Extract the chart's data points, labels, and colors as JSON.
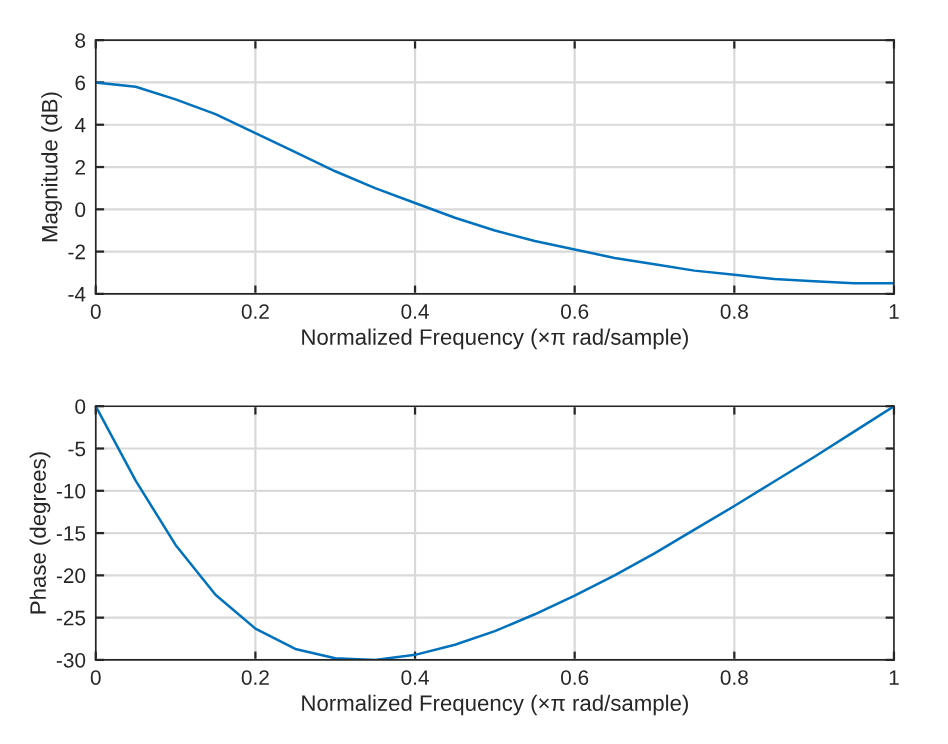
{
  "chart_data": [
    {
      "type": "line",
      "xlabel": "Normalized Frequency (×π rad/sample)",
      "ylabel": "Magnitude (dB)",
      "x": [
        0,
        0.05,
        0.1,
        0.15,
        0.2,
        0.25,
        0.3,
        0.35,
        0.4,
        0.45,
        0.5,
        0.55,
        0.6,
        0.65,
        0.7,
        0.75,
        0.8,
        0.85,
        0.9,
        0.95,
        1
      ],
      "series": [
        {
          "color": "#0072bd",
          "values": [
            6.0,
            5.8,
            5.2,
            4.5,
            3.6,
            2.7,
            1.8,
            1.0,
            0.3,
            -0.4,
            -1.0,
            -1.5,
            -1.9,
            -2.3,
            -2.6,
            -2.9,
            -3.1,
            -3.3,
            -3.4,
            -3.5,
            -3.5
          ]
        }
      ],
      "xlim": [
        0,
        1
      ],
      "xticks": [
        0,
        0.2,
        0.4,
        0.6,
        0.8,
        1
      ],
      "ylim": [
        -4,
        8
      ],
      "yticks": [
        -4,
        -2,
        0,
        2,
        4,
        6,
        8
      ],
      "grid": true,
      "marker": "none",
      "line_style": "solid"
    },
    {
      "type": "line",
      "xlabel": "Normalized Frequency (×π rad/sample)",
      "ylabel": "Phase (degrees)",
      "x": [
        0,
        0.05,
        0.1,
        0.15,
        0.2,
        0.25,
        0.3,
        0.35,
        0.4,
        0.45,
        0.5,
        0.55,
        0.6,
        0.65,
        0.7,
        0.75,
        0.8,
        0.85,
        0.9,
        0.95,
        1
      ],
      "series": [
        {
          "color": "#0072bd",
          "values": [
            0,
            -8.8,
            -16.4,
            -22.3,
            -26.3,
            -28.7,
            -29.8,
            -30.0,
            -29.4,
            -28.2,
            -26.6,
            -24.6,
            -22.4,
            -20.0,
            -17.4,
            -14.6,
            -11.8,
            -8.9,
            -6.0,
            -3.0,
            0
          ]
        }
      ],
      "xlim": [
        0,
        1
      ],
      "xticks": [
        0,
        0.2,
        0.4,
        0.6,
        0.8,
        1
      ],
      "ylim": [
        -30,
        0
      ],
      "yticks": [
        -30,
        -25,
        -20,
        -15,
        -10,
        -5,
        0
      ],
      "grid": true,
      "marker": "none",
      "line_style": "solid"
    }
  ]
}
